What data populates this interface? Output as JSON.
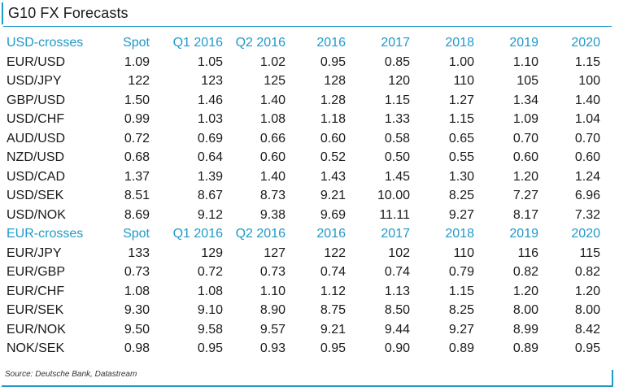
{
  "title": "G10 FX Forecasts",
  "accent_color": "#1f9ac9",
  "sections": [
    {
      "header": [
        "USD-crosses",
        "Spot",
        "Q1 2016",
        "Q2 2016",
        "2016",
        "2017",
        "2018",
        "2019",
        "2020"
      ],
      "rows": [
        [
          "EUR/USD",
          "1.09",
          "1.05",
          "1.02",
          "0.95",
          "0.85",
          "1.00",
          "1.10",
          "1.15"
        ],
        [
          "USD/JPY",
          "122",
          "123",
          "125",
          "128",
          "120",
          "110",
          "105",
          "100"
        ],
        [
          "GBP/USD",
          "1.50",
          "1.46",
          "1.40",
          "1.28",
          "1.15",
          "1.27",
          "1.34",
          "1.40"
        ],
        [
          "USD/CHF",
          "0.99",
          "1.03",
          "1.08",
          "1.18",
          "1.33",
          "1.15",
          "1.09",
          "1.04"
        ],
        [
          "AUD/USD",
          "0.72",
          "0.69",
          "0.66",
          "0.60",
          "0.58",
          "0.65",
          "0.70",
          "0.70"
        ],
        [
          "NZD/USD",
          "0.68",
          "0.64",
          "0.60",
          "0.52",
          "0.50",
          "0.55",
          "0.60",
          "0.60"
        ],
        [
          "USD/CAD",
          "1.37",
          "1.39",
          "1.40",
          "1.43",
          "1.45",
          "1.30",
          "1.20",
          "1.24"
        ],
        [
          "USD/SEK",
          "8.51",
          "8.67",
          "8.73",
          "9.21",
          "10.00",
          "8.25",
          "7.27",
          "6.96"
        ],
        [
          "USD/NOK",
          "8.69",
          "9.12",
          "9.38",
          "9.69",
          "11.11",
          "9.27",
          "8.17",
          "7.32"
        ]
      ]
    },
    {
      "header": [
        "EUR-crosses",
        "Spot",
        "Q1 2016",
        "Q2 2016",
        "2016",
        "2017",
        "2018",
        "2019",
        "2020"
      ],
      "rows": [
        [
          "EUR/JPY",
          "133",
          "129",
          "127",
          "122",
          "102",
          "110",
          "116",
          "115"
        ],
        [
          "EUR/GBP",
          "0.73",
          "0.72",
          "0.73",
          "0.74",
          "0.74",
          "0.79",
          "0.82",
          "0.82"
        ],
        [
          "EUR/CHF",
          "1.08",
          "1.08",
          "1.10",
          "1.12",
          "1.13",
          "1.15",
          "1.20",
          "1.20"
        ],
        [
          "EUR/SEK",
          "9.30",
          "9.10",
          "8.90",
          "8.75",
          "8.50",
          "8.25",
          "8.00",
          "8.00"
        ],
        [
          "EUR/NOK",
          "9.50",
          "9.58",
          "9.57",
          "9.21",
          "9.44",
          "9.27",
          "8.99",
          "8.42"
        ],
        [
          "NOK/SEK",
          "0.98",
          "0.95",
          "0.93",
          "0.95",
          "0.90",
          "0.89",
          "0.89",
          "0.95"
        ]
      ]
    }
  ],
  "source": "Source: Deutsche Bank, Datastream"
}
